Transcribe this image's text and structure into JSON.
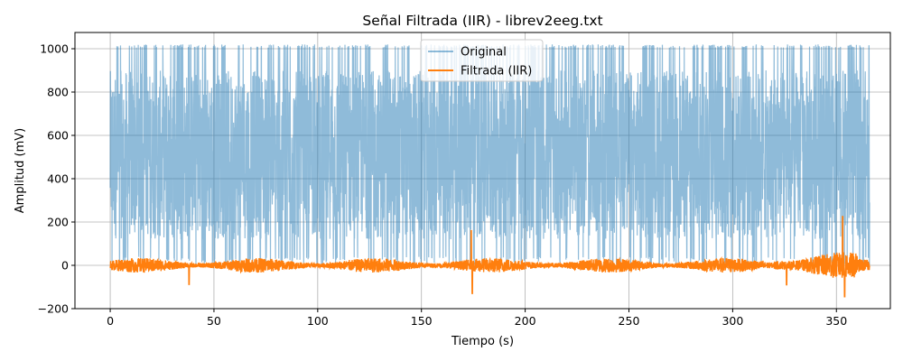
{
  "chart_data": {
    "type": "line",
    "title": "Señal Filtrada (IIR) - librev2eeg.txt",
    "xlabel": "Tiempo (s)",
    "ylabel": "Amplitud (mV)",
    "xlim": [
      -17,
      376
    ],
    "ylim": [
      -200,
      1075
    ],
    "xticks": [
      0,
      50,
      100,
      150,
      200,
      250,
      300,
      350
    ],
    "yticks": [
      -200,
      0,
      200,
      400,
      600,
      800,
      1000
    ],
    "x_range": [
      0,
      366
    ],
    "grid": true,
    "legend": "top-center",
    "series": [
      {
        "name": "Original",
        "color": "#1f77b4",
        "alpha": 0.5,
        "description_values": {
          "min": 0,
          "max": 1020,
          "mean": 510
        }
      },
      {
        "name": "Filtrada (IIR)",
        "color": "#ff7f0e",
        "alpha": 1.0,
        "description_values": {
          "min": -145,
          "max": 225,
          "mean": 0
        },
        "peaks": [
          {
            "x": 174,
            "y": 160
          },
          {
            "x": 174.5,
            "y": -130
          },
          {
            "x": 353,
            "y": 225
          },
          {
            "x": 354,
            "y": -145
          },
          {
            "x": 326,
            "y": -90
          },
          {
            "x": 38,
            "y": -88
          }
        ]
      }
    ]
  }
}
